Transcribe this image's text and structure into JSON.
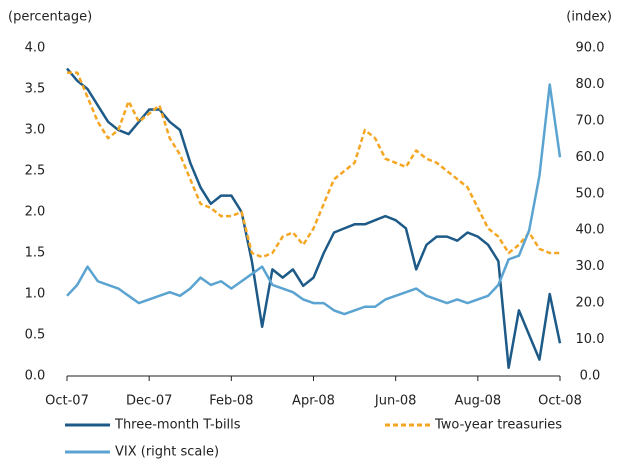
{
  "chart_data": {
    "type": "line",
    "y_label": "(percentage)",
    "y2_label": "(index)",
    "xlim": [
      0,
      12
    ],
    "xticks": [
      {
        "value": 0,
        "label": "Oct-07"
      },
      {
        "value": 2,
        "label": "Dec-07"
      },
      {
        "value": 4,
        "label": "Feb-08"
      },
      {
        "value": 6,
        "label": "Apr-08"
      },
      {
        "value": 8,
        "label": "Jun-08"
      },
      {
        "value": 10,
        "label": "Aug-08"
      },
      {
        "value": 12,
        "label": "Oct-08"
      }
    ],
    "ylim": [
      0,
      4
    ],
    "yticks": [
      {
        "value": 0,
        "label": "0.0"
      },
      {
        "value": 0.5,
        "label": "0.5"
      },
      {
        "value": 1,
        "label": "1.0"
      },
      {
        "value": 1.5,
        "label": "1.5"
      },
      {
        "value": 2,
        "label": "2.0"
      },
      {
        "value": 2.5,
        "label": "2.5"
      },
      {
        "value": 3,
        "label": "3.0"
      },
      {
        "value": 3.5,
        "label": "3.5"
      },
      {
        "value": 4,
        "label": "4.0"
      }
    ],
    "y2lim": [
      0,
      90
    ],
    "y2ticks": [
      {
        "value": 0,
        "label": "0.0"
      },
      {
        "value": 10,
        "label": "10.0"
      },
      {
        "value": 20,
        "label": "20.0"
      },
      {
        "value": 30,
        "label": "30.0"
      },
      {
        "value": 40,
        "label": "40.0"
      },
      {
        "value": 50,
        "label": "50.0"
      },
      {
        "value": 60,
        "label": "60.0"
      },
      {
        "value": 70,
        "label": "70.0"
      },
      {
        "value": 80,
        "label": "80.0"
      },
      {
        "value": 90,
        "label": "90.0"
      }
    ],
    "x": [
      0,
      0.25,
      0.5,
      0.75,
      1,
      1.25,
      1.5,
      1.75,
      2,
      2.25,
      2.5,
      2.75,
      3,
      3.25,
      3.5,
      3.75,
      4,
      4.25,
      4.5,
      4.75,
      5,
      5.25,
      5.5,
      5.75,
      6,
      6.25,
      6.5,
      6.75,
      7,
      7.25,
      7.5,
      7.75,
      8,
      8.25,
      8.5,
      8.75,
      9,
      9.25,
      9.5,
      9.75,
      10,
      10.25,
      10.5,
      10.75,
      11,
      11.25,
      11.5,
      11.75,
      12
    ],
    "series": [
      {
        "name": "Three-month T-bills",
        "color": "#1d5a88",
        "dashed": false,
        "values": [
          3.75,
          3.6,
          3.5,
          3.3,
          3.1,
          3.0,
          2.95,
          3.1,
          3.25,
          3.25,
          3.1,
          3.0,
          2.6,
          2.3,
          2.1,
          2.2,
          2.2,
          2.0,
          1.4,
          0.6,
          1.3,
          1.2,
          1.3,
          1.1,
          1.2,
          1.5,
          1.75,
          1.8,
          1.85,
          1.85,
          1.9,
          1.95,
          1.9,
          1.8,
          1.3,
          1.6,
          1.7,
          1.7,
          1.65,
          1.75,
          1.7,
          1.6,
          1.4,
          0.1,
          0.8,
          0.5,
          0.2,
          1.0,
          0.4
        ]
      },
      {
        "name": "Two-year treasuries",
        "color": "#f5a623",
        "dashed": true,
        "values": [
          3.7,
          3.7,
          3.4,
          3.1,
          2.9,
          3.0,
          3.35,
          3.1,
          3.2,
          3.3,
          2.9,
          2.7,
          2.4,
          2.1,
          2.05,
          1.95,
          1.95,
          2.0,
          1.5,
          1.45,
          1.5,
          1.7,
          1.75,
          1.6,
          1.8,
          2.1,
          2.4,
          2.5,
          2.6,
          3.0,
          2.9,
          2.65,
          2.6,
          2.55,
          2.75,
          2.65,
          2.6,
          2.5,
          2.4,
          2.3,
          2.05,
          1.8,
          1.7,
          1.5,
          1.6,
          1.75,
          1.55,
          1.5,
          1.5
        ]
      },
      {
        "name": "VIX (right scale)",
        "color": "#5ba3d0",
        "dashed": false,
        "axis": "y2",
        "values": [
          22,
          25,
          30,
          26,
          25,
          24,
          22,
          20,
          21,
          22,
          23,
          22,
          24,
          27,
          25,
          26,
          24,
          26,
          28,
          30,
          25,
          24,
          23,
          21,
          20,
          20,
          18,
          17,
          18,
          19,
          19,
          21,
          22,
          23,
          24,
          22,
          21,
          20,
          21,
          20,
          21,
          22,
          25,
          32,
          33,
          40,
          55,
          80,
          60
        ]
      }
    ]
  }
}
